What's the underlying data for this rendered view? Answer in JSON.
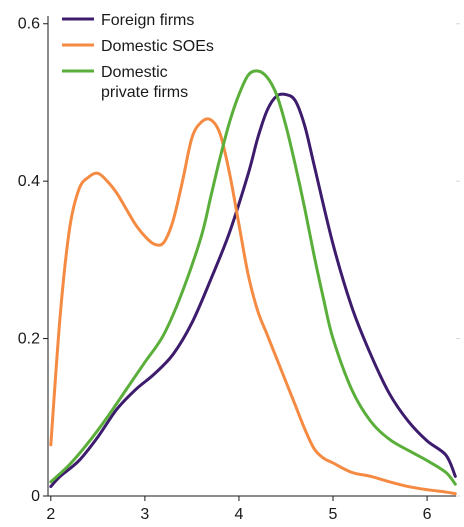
{
  "chart_data": {
    "type": "line",
    "title": "",
    "xlabel": "",
    "ylabel": "",
    "xlim": [
      1.97,
      6.35
    ],
    "ylim": [
      0,
      0.62
    ],
    "x_ticks": [
      2,
      3,
      4,
      5,
      6
    ],
    "x_tick_labels": [
      "2",
      "3",
      "4",
      "5",
      "6"
    ],
    "y_ticks": [
      0,
      0.2,
      0.4,
      0.6
    ],
    "y_tick_labels": [
      "0",
      "0.2",
      "0.4",
      "0.6"
    ],
    "grid": false,
    "legend_position": "top-left",
    "series": [
      {
        "name": "Foreign firms",
        "color": "#3d1c6e",
        "x": [
          2.0,
          2.1,
          2.3,
          2.5,
          2.7,
          2.9,
          3.1,
          3.3,
          3.5,
          3.7,
          3.9,
          4.1,
          4.2,
          4.3,
          4.4,
          4.5,
          4.6,
          4.7,
          4.8,
          5.0,
          5.2,
          5.4,
          5.6,
          5.8,
          6.0,
          6.2,
          6.3
        ],
        "y": [
          0.012,
          0.025,
          0.045,
          0.075,
          0.11,
          0.135,
          0.155,
          0.18,
          0.22,
          0.275,
          0.335,
          0.41,
          0.455,
          0.49,
          0.508,
          0.51,
          0.502,
          0.47,
          0.42,
          0.32,
          0.24,
          0.18,
          0.13,
          0.095,
          0.07,
          0.052,
          0.025
        ]
      },
      {
        "name": "Domestic SOEs",
        "color": "#f58a42",
        "x": [
          2.0,
          2.1,
          2.2,
          2.3,
          2.4,
          2.5,
          2.6,
          2.7,
          2.8,
          2.9,
          3.0,
          3.1,
          3.2,
          3.3,
          3.4,
          3.5,
          3.6,
          3.7,
          3.8,
          3.9,
          4.0,
          4.1,
          4.2,
          4.3,
          4.4,
          4.5,
          4.6,
          4.7,
          4.8,
          4.9,
          5.0,
          5.2,
          5.4,
          5.6,
          5.8,
          6.0,
          6.2,
          6.3
        ],
        "y": [
          0.065,
          0.23,
          0.34,
          0.39,
          0.405,
          0.41,
          0.4,
          0.385,
          0.365,
          0.345,
          0.33,
          0.32,
          0.322,
          0.35,
          0.4,
          0.455,
          0.475,
          0.478,
          0.46,
          0.41,
          0.345,
          0.28,
          0.235,
          0.205,
          0.175,
          0.145,
          0.115,
          0.085,
          0.06,
          0.048,
          0.042,
          0.03,
          0.025,
          0.018,
          0.012,
          0.008,
          0.005,
          0.003
        ]
      },
      {
        "name": "Domestic private firms",
        "color": "#5aaf3a",
        "x": [
          2.0,
          2.2,
          2.4,
          2.6,
          2.8,
          3.0,
          3.2,
          3.4,
          3.6,
          3.7,
          3.8,
          3.9,
          4.0,
          4.1,
          4.2,
          4.3,
          4.4,
          4.5,
          4.6,
          4.7,
          4.8,
          4.9,
          5.0,
          5.2,
          5.4,
          5.6,
          5.8,
          6.0,
          6.2,
          6.3
        ],
        "y": [
          0.018,
          0.04,
          0.068,
          0.1,
          0.135,
          0.17,
          0.205,
          0.26,
          0.33,
          0.38,
          0.43,
          0.475,
          0.51,
          0.535,
          0.54,
          0.532,
          0.51,
          0.47,
          0.42,
          0.365,
          0.305,
          0.25,
          0.2,
          0.135,
          0.095,
          0.072,
          0.058,
          0.045,
          0.03,
          0.015
        ]
      }
    ],
    "legend_labels": [
      [
        "Foreign firms"
      ],
      [
        "Domestic SOEs"
      ],
      [
        "Domestic",
        "private firms"
      ]
    ]
  }
}
